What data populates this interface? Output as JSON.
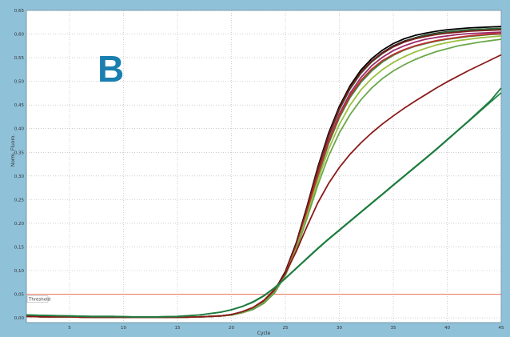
{
  "panel_letter": "B",
  "colors": {
    "frame": "#8fc1d9",
    "plot_bg": "#ffffff",
    "grid": "#b0b0b0",
    "threshold": "#e8806a",
    "panel_letter": "#1a7fb0"
  },
  "chart_data": {
    "type": "line",
    "title": "",
    "xlabel": "Cycle",
    "ylabel": "Norm. Fluoro.",
    "xlim": [
      1,
      45
    ],
    "ylim": [
      -0.01,
      0.65
    ],
    "x_ticks": [
      5,
      10,
      15,
      20,
      25,
      30,
      35,
      40,
      45
    ],
    "y_ticks": [
      0.0,
      0.05,
      0.1,
      0.15,
      0.2,
      0.25,
      0.3,
      0.35,
      0.4,
      0.45,
      0.5,
      0.55,
      0.6,
      0.65
    ],
    "y_tick_labels": [
      "0,00",
      "0,05",
      "0,10",
      "0,15",
      "0,20",
      "0,25",
      "0,30",
      "0,35",
      "0,40",
      "0,45",
      "0,50",
      "0,55",
      "0,60",
      "0,65"
    ],
    "x_tick_labels": [
      "5",
      "10",
      "15",
      "20",
      "25",
      "30",
      "35",
      "40",
      "45"
    ],
    "grid": true,
    "threshold": {
      "label": "Threshold",
      "value": 0.05
    },
    "x": [
      1,
      3,
      5,
      7,
      9,
      11,
      13,
      15,
      17,
      19,
      20,
      21,
      22,
      23,
      24,
      25,
      26,
      27,
      28,
      29,
      30,
      31,
      32,
      33,
      34,
      35,
      36,
      37,
      38,
      39,
      40,
      41,
      42,
      43,
      44,
      45
    ],
    "series": [
      {
        "color": "#000000",
        "values": [
          0.003,
          0.002,
          0.002,
          0.001,
          0.001,
          0.001,
          0.001,
          0.001,
          0.002,
          0.004,
          0.007,
          0.012,
          0.02,
          0.034,
          0.058,
          0.098,
          0.158,
          0.235,
          0.318,
          0.39,
          0.447,
          0.491,
          0.524,
          0.548,
          0.566,
          0.58,
          0.59,
          0.597,
          0.602,
          0.606,
          0.609,
          0.611,
          0.613,
          0.614,
          0.615,
          0.616
        ]
      },
      {
        "color": "#1a1a1a",
        "values": [
          0.003,
          0.002,
          0.002,
          0.001,
          0.001,
          0.001,
          0.001,
          0.001,
          0.002,
          0.004,
          0.006,
          0.011,
          0.019,
          0.032,
          0.055,
          0.094,
          0.152,
          0.228,
          0.31,
          0.383,
          0.441,
          0.486,
          0.519,
          0.543,
          0.561,
          0.575,
          0.585,
          0.592,
          0.598,
          0.602,
          0.605,
          0.607,
          0.609,
          0.61,
          0.611,
          0.612
        ]
      },
      {
        "color": "#2b6e3a",
        "values": [
          0.003,
          0.002,
          0.002,
          0.001,
          0.001,
          0.001,
          0.001,
          0.001,
          0.002,
          0.004,
          0.007,
          0.012,
          0.02,
          0.033,
          0.056,
          0.095,
          0.154,
          0.23,
          0.311,
          0.383,
          0.44,
          0.484,
          0.517,
          0.541,
          0.559,
          0.573,
          0.583,
          0.591,
          0.597,
          0.601,
          0.604,
          0.607,
          0.609,
          0.61,
          0.611,
          0.612
        ]
      },
      {
        "color": "#7a1a1a",
        "values": [
          0.003,
          0.002,
          0.002,
          0.001,
          0.001,
          0.001,
          0.001,
          0.001,
          0.002,
          0.004,
          0.006,
          0.011,
          0.019,
          0.033,
          0.057,
          0.096,
          0.155,
          0.232,
          0.314,
          0.386,
          0.443,
          0.487,
          0.519,
          0.543,
          0.56,
          0.573,
          0.583,
          0.59,
          0.595,
          0.599,
          0.602,
          0.604,
          0.606,
          0.607,
          0.608,
          0.609
        ]
      },
      {
        "color": "#9a2a6a",
        "values": [
          0.003,
          0.002,
          0.002,
          0.001,
          0.001,
          0.001,
          0.001,
          0.001,
          0.002,
          0.004,
          0.006,
          0.011,
          0.018,
          0.031,
          0.053,
          0.091,
          0.148,
          0.222,
          0.302,
          0.374,
          0.431,
          0.475,
          0.508,
          0.533,
          0.551,
          0.565,
          0.575,
          0.583,
          0.589,
          0.593,
          0.596,
          0.599,
          0.601,
          0.602,
          0.603,
          0.604
        ]
      },
      {
        "color": "#3a8a3a",
        "values": [
          0.003,
          0.002,
          0.002,
          0.001,
          0.001,
          0.001,
          0.001,
          0.001,
          0.002,
          0.004,
          0.006,
          0.011,
          0.018,
          0.031,
          0.053,
          0.09,
          0.147,
          0.22,
          0.298,
          0.368,
          0.423,
          0.466,
          0.498,
          0.522,
          0.541,
          0.555,
          0.566,
          0.574,
          0.58,
          0.585,
          0.589,
          0.592,
          0.595,
          0.597,
          0.599,
          0.6
        ]
      },
      {
        "color": "#c03030",
        "values": [
          0.003,
          0.002,
          0.002,
          0.001,
          0.001,
          0.001,
          0.001,
          0.001,
          0.002,
          0.004,
          0.007,
          0.012,
          0.02,
          0.033,
          0.055,
          0.093,
          0.15,
          0.224,
          0.302,
          0.372,
          0.427,
          0.47,
          0.502,
          0.526,
          0.544,
          0.557,
          0.567,
          0.575,
          0.581,
          0.586,
          0.59,
          0.593,
          0.596,
          0.598,
          0.6,
          0.601
        ]
      },
      {
        "color": "#9ac040",
        "values": [
          0.003,
          0.002,
          0.002,
          0.001,
          0.001,
          0.001,
          0.001,
          0.001,
          0.002,
          0.004,
          0.006,
          0.011,
          0.019,
          0.032,
          0.054,
          0.091,
          0.146,
          0.216,
          0.29,
          0.356,
          0.409,
          0.45,
          0.482,
          0.506,
          0.525,
          0.54,
          0.552,
          0.562,
          0.57,
          0.577,
          0.582,
          0.586,
          0.589,
          0.592,
          0.594,
          0.596
        ]
      },
      {
        "color": "#6aa84a",
        "values": [
          0.003,
          0.002,
          0.002,
          0.001,
          0.001,
          0.001,
          0.001,
          0.001,
          0.002,
          0.004,
          0.006,
          0.011,
          0.019,
          0.032,
          0.054,
          0.09,
          0.143,
          0.21,
          0.28,
          0.342,
          0.391,
          0.43,
          0.461,
          0.486,
          0.506,
          0.522,
          0.535,
          0.546,
          0.555,
          0.563,
          0.569,
          0.575,
          0.579,
          0.583,
          0.586,
          0.589
        ]
      },
      {
        "color": "#8b1a1a",
        "values": [
          0.003,
          0.002,
          0.002,
          0.001,
          0.001,
          0.001,
          0.001,
          0.001,
          0.002,
          0.004,
          0.007,
          0.013,
          0.022,
          0.037,
          0.06,
          0.094,
          0.14,
          0.193,
          0.243,
          0.284,
          0.318,
          0.346,
          0.37,
          0.391,
          0.41,
          0.427,
          0.443,
          0.458,
          0.472,
          0.486,
          0.499,
          0.511,
          0.523,
          0.534,
          0.545,
          0.556
        ]
      },
      {
        "color": "#228b4a",
        "values": [
          0.006,
          0.005,
          0.004,
          0.003,
          0.003,
          0.002,
          0.002,
          0.003,
          0.006,
          0.012,
          0.017,
          0.024,
          0.033,
          0.046,
          0.063,
          0.083,
          0.104,
          0.125,
          0.146,
          0.166,
          0.185,
          0.204,
          0.223,
          0.242,
          0.261,
          0.28,
          0.299,
          0.318,
          0.337,
          0.356,
          0.376,
          0.396,
          0.416,
          0.436,
          0.456,
          0.476
        ]
      },
      {
        "color": "#1f7a3e",
        "values": [
          0.006,
          0.005,
          0.004,
          0.003,
          0.003,
          0.002,
          0.002,
          0.003,
          0.006,
          0.012,
          0.017,
          0.024,
          0.034,
          0.047,
          0.064,
          0.084,
          0.105,
          0.126,
          0.147,
          0.167,
          0.186,
          0.205,
          0.224,
          0.243,
          0.262,
          0.281,
          0.3,
          0.319,
          0.338,
          0.357,
          0.377,
          0.397,
          0.417,
          0.438,
          0.459,
          0.486
        ]
      }
    ]
  }
}
